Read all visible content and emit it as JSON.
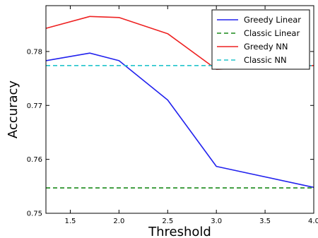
{
  "chart_data": {
    "type": "line",
    "xlabel": "Threshold",
    "ylabel": "Accuracy",
    "xlim": [
      1.25,
      4.0
    ],
    "ylim": [
      0.75,
      0.7885
    ],
    "xticks": [
      1.5,
      2.0,
      2.5,
      3.0,
      3.5,
      4.0
    ],
    "xtick_labels": [
      "1.5",
      "2.0",
      "2.5",
      "3.0",
      "3.5",
      "4.0"
    ],
    "yticks": [
      0.75,
      0.76,
      0.77,
      0.78
    ],
    "ytick_labels": [
      "0.75",
      "0.76",
      "0.77",
      "0.78"
    ],
    "grid": false,
    "legend_position": "top-right",
    "series": [
      {
        "name": "Greedy Linear",
        "color": "#2222ee",
        "style": "solid",
        "x": [
          1.25,
          1.7,
          2.0,
          2.5,
          3.0,
          4.0
        ],
        "y": [
          0.7783,
          0.7797,
          0.7783,
          0.771,
          0.7587,
          0.7548
        ]
      },
      {
        "name": "Classic Linear",
        "color": "#1a8a1a",
        "style": "dashed",
        "x": [
          1.25,
          4.0
        ],
        "y": [
          0.7547,
          0.7547
        ]
      },
      {
        "name": "Greedy NN",
        "color": "#ee2222",
        "style": "solid",
        "x": [
          1.25,
          1.7,
          2.0,
          2.5,
          3.0,
          4.0
        ],
        "y": [
          0.7843,
          0.7865,
          0.7863,
          0.7833,
          0.7767,
          0.7774
        ]
      },
      {
        "name": "Classic NN",
        "color": "#22c4cc",
        "style": "dashed",
        "x": [
          1.25,
          4.0
        ],
        "y": [
          0.7774,
          0.7774
        ]
      }
    ]
  }
}
